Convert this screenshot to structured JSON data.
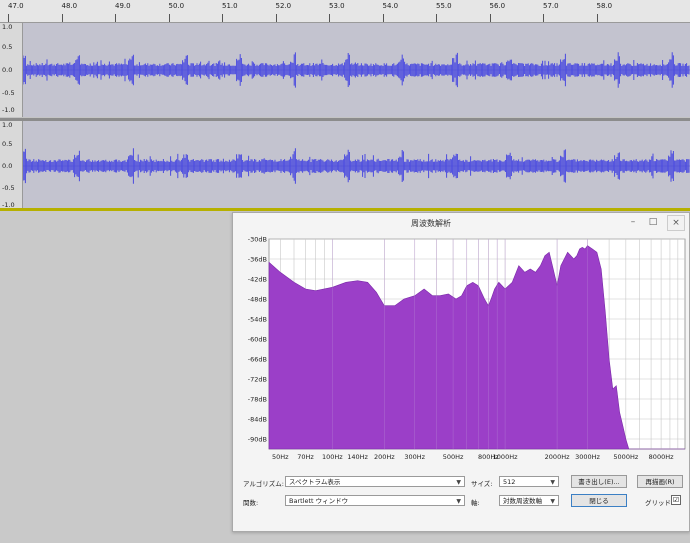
{
  "ruler": {
    "ticks": [
      "47.0",
      "48.0",
      "49.0",
      "50.0",
      "51.0",
      "52.0",
      "53.0",
      "54.0",
      "55.0",
      "56.0",
      "57.0",
      "58.0"
    ]
  },
  "tracks": [
    {
      "labels": [
        "1.0",
        "0.5",
        "0.0",
        "-0.5",
        "-1.0"
      ]
    },
    {
      "labels": [
        "1.0",
        "0.5",
        "0.0",
        "-0.5",
        "-1.0"
      ]
    }
  ],
  "dialog": {
    "title": "周波数解析",
    "minimize": "–",
    "maximize": "□",
    "close": "×"
  },
  "chart_data": {
    "type": "area",
    "title": "",
    "xlabel": "",
    "ylabel": "",
    "x_scale": "log",
    "xlim": [
      43,
      11000
    ],
    "ylim": [
      -93,
      -30
    ],
    "y_ticks": [
      "-30dB",
      "-36dB",
      "-42dB",
      "-48dB",
      "-54dB",
      "-60dB",
      "-66dB",
      "-72dB",
      "-78dB",
      "-84dB",
      "-90dB"
    ],
    "y_tick_values": [
      -30,
      -36,
      -42,
      -48,
      -54,
      -60,
      -66,
      -72,
      -78,
      -84,
      -90
    ],
    "x_ticks": [
      "50Hz",
      "70Hz",
      "100Hz",
      "140Hz",
      "200Hz",
      "300Hz",
      "500Hz",
      "800Hz",
      "1000Hz",
      "2000Hz",
      "3000Hz",
      "5000Hz",
      "8000Hz"
    ],
    "x_tick_values": [
      50,
      70,
      100,
      140,
      200,
      300,
      500,
      800,
      1000,
      2000,
      3000,
      5000,
      8000
    ],
    "grid": true,
    "color": "#9b3fc8",
    "x": [
      43,
      50,
      60,
      70,
      80,
      100,
      120,
      140,
      160,
      180,
      200,
      230,
      260,
      300,
      340,
      380,
      420,
      470,
      520,
      560,
      600,
      650,
      700,
      760,
      800,
      830,
      870,
      920,
      1000,
      1100,
      1200,
      1300,
      1400,
      1500,
      1600,
      1700,
      1800,
      1900,
      2000,
      2100,
      2200,
      2300,
      2400,
      2500,
      2600,
      2700,
      2800,
      2900,
      3000,
      3200,
      3400,
      3600,
      3800,
      4000,
      4200,
      4400,
      4600,
      4800,
      5000,
      5200,
      5400,
      11000
    ],
    "y": [
      -37,
      -40,
      -43,
      -45,
      -45.5,
      -44.5,
      -43,
      -42.5,
      -43,
      -46,
      -50,
      -50,
      -48,
      -47,
      -45,
      -47,
      -47,
      -46.5,
      -48,
      -47,
      -44,
      -43,
      -44,
      -48,
      -50,
      -48,
      -45,
      -43,
      -45,
      -43,
      -38,
      -40,
      -39,
      -40,
      -38,
      -35,
      -34,
      -39,
      -44,
      -38,
      -36,
      -34,
      -35,
      -36,
      -35,
      -33,
      -32.5,
      -33,
      -32,
      -33,
      -34,
      -39,
      -52,
      -66,
      -75,
      -74,
      -82,
      -86,
      -90,
      -93,
      -93,
      -93
    ]
  },
  "controls": {
    "algorithm_label": "アルゴリズム:",
    "algorithm_value": "スペクトラム表示",
    "size_label": "サイズ:",
    "size_value": "512",
    "export_button": "書き出し(E)...",
    "replot_button": "再描画(R)",
    "function_label": "関数:",
    "function_value": "Bartlett ウィンドウ",
    "axis_label": "軸:",
    "axis_value": "対数周波数軸",
    "close_button": "閉じる",
    "grid_label": "グリッド",
    "grid_checked": "☑"
  }
}
